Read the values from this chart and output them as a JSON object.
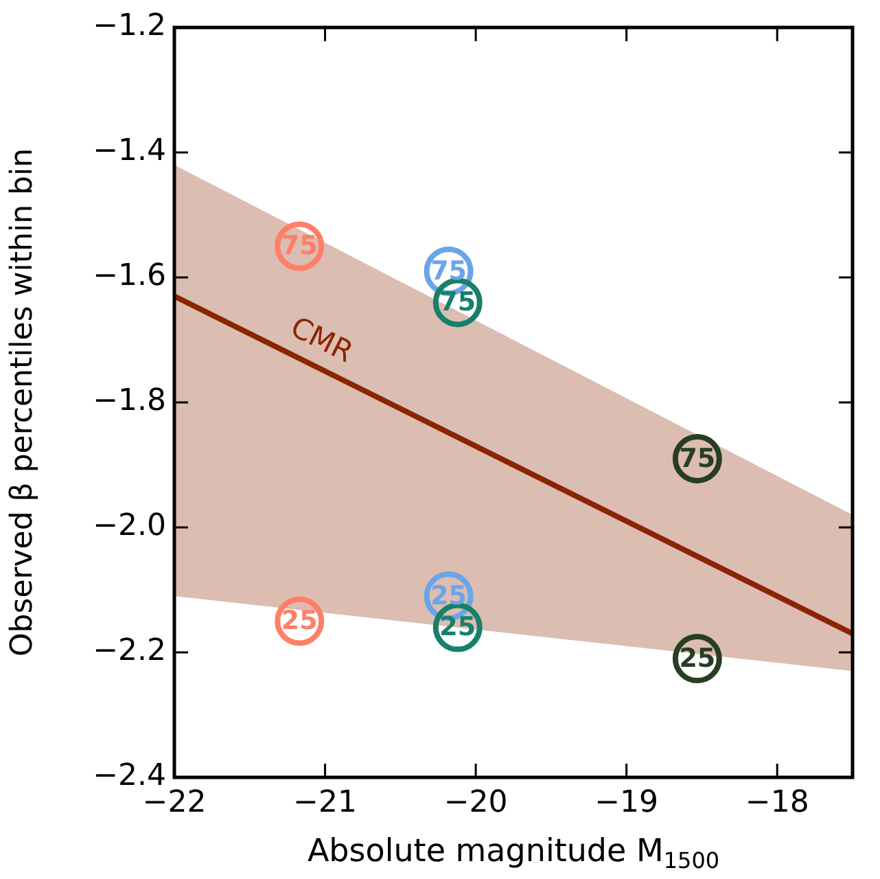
{
  "chart_data": {
    "type": "scatter",
    "xlabel": "Absolute magnitude M$_{1500}$",
    "ylabel": "Observed β percentiles within bin",
    "xlim": [
      -22,
      -17.5
    ],
    "xticks": [
      {
        "value": -22,
        "label": "−22"
      },
      {
        "value": -21,
        "label": "−21"
      },
      {
        "value": -20,
        "label": "−20"
      },
      {
        "value": -19,
        "label": "−19"
      },
      {
        "value": -18,
        "label": "−18"
      }
    ],
    "ylim": [
      -2.4,
      -1.2
    ],
    "yticks": [
      {
        "value": -2.4,
        "label": "−2.4"
      },
      {
        "value": -2.2,
        "label": "−2.2"
      },
      {
        "value": -2.0,
        "label": "−2.0"
      },
      {
        "value": -1.8,
        "label": "−1.8"
      },
      {
        "value": -1.6,
        "label": "−1.6"
      },
      {
        "value": -1.4,
        "label": "−1.4"
      },
      {
        "value": -1.2,
        "label": "−1.2"
      }
    ],
    "grid": false,
    "series": [
      {
        "type": "line",
        "name": "CMR",
        "color": "#8b2500",
        "x": [
          -22,
          -17.5
        ],
        "values": [
          -1.63,
          -2.17
        ],
        "lower": [
          -2.11,
          -2.23
        ],
        "upper": [
          -1.42,
          -1.98
        ]
      },
      {
        "name": "75",
        "marker": "circle",
        "colors": [
          "#ff7f66",
          "#6aa5e8",
          "#17806a",
          "#263f20"
        ],
        "x": [
          -21.17,
          -20.18,
          -20.12,
          -18.53
        ],
        "values": [
          -1.55,
          -1.59,
          -1.64,
          -1.89
        ]
      },
      {
        "name": "25",
        "marker": "circle",
        "colors": [
          "#ff7f66",
          "#6aa5e8",
          "#17806a",
          "#263f20"
        ],
        "x": [
          -21.17,
          -20.18,
          -20.12,
          -18.53
        ],
        "values": [
          -2.15,
          -2.11,
          -2.16,
          -2.21
        ]
      }
    ]
  }
}
